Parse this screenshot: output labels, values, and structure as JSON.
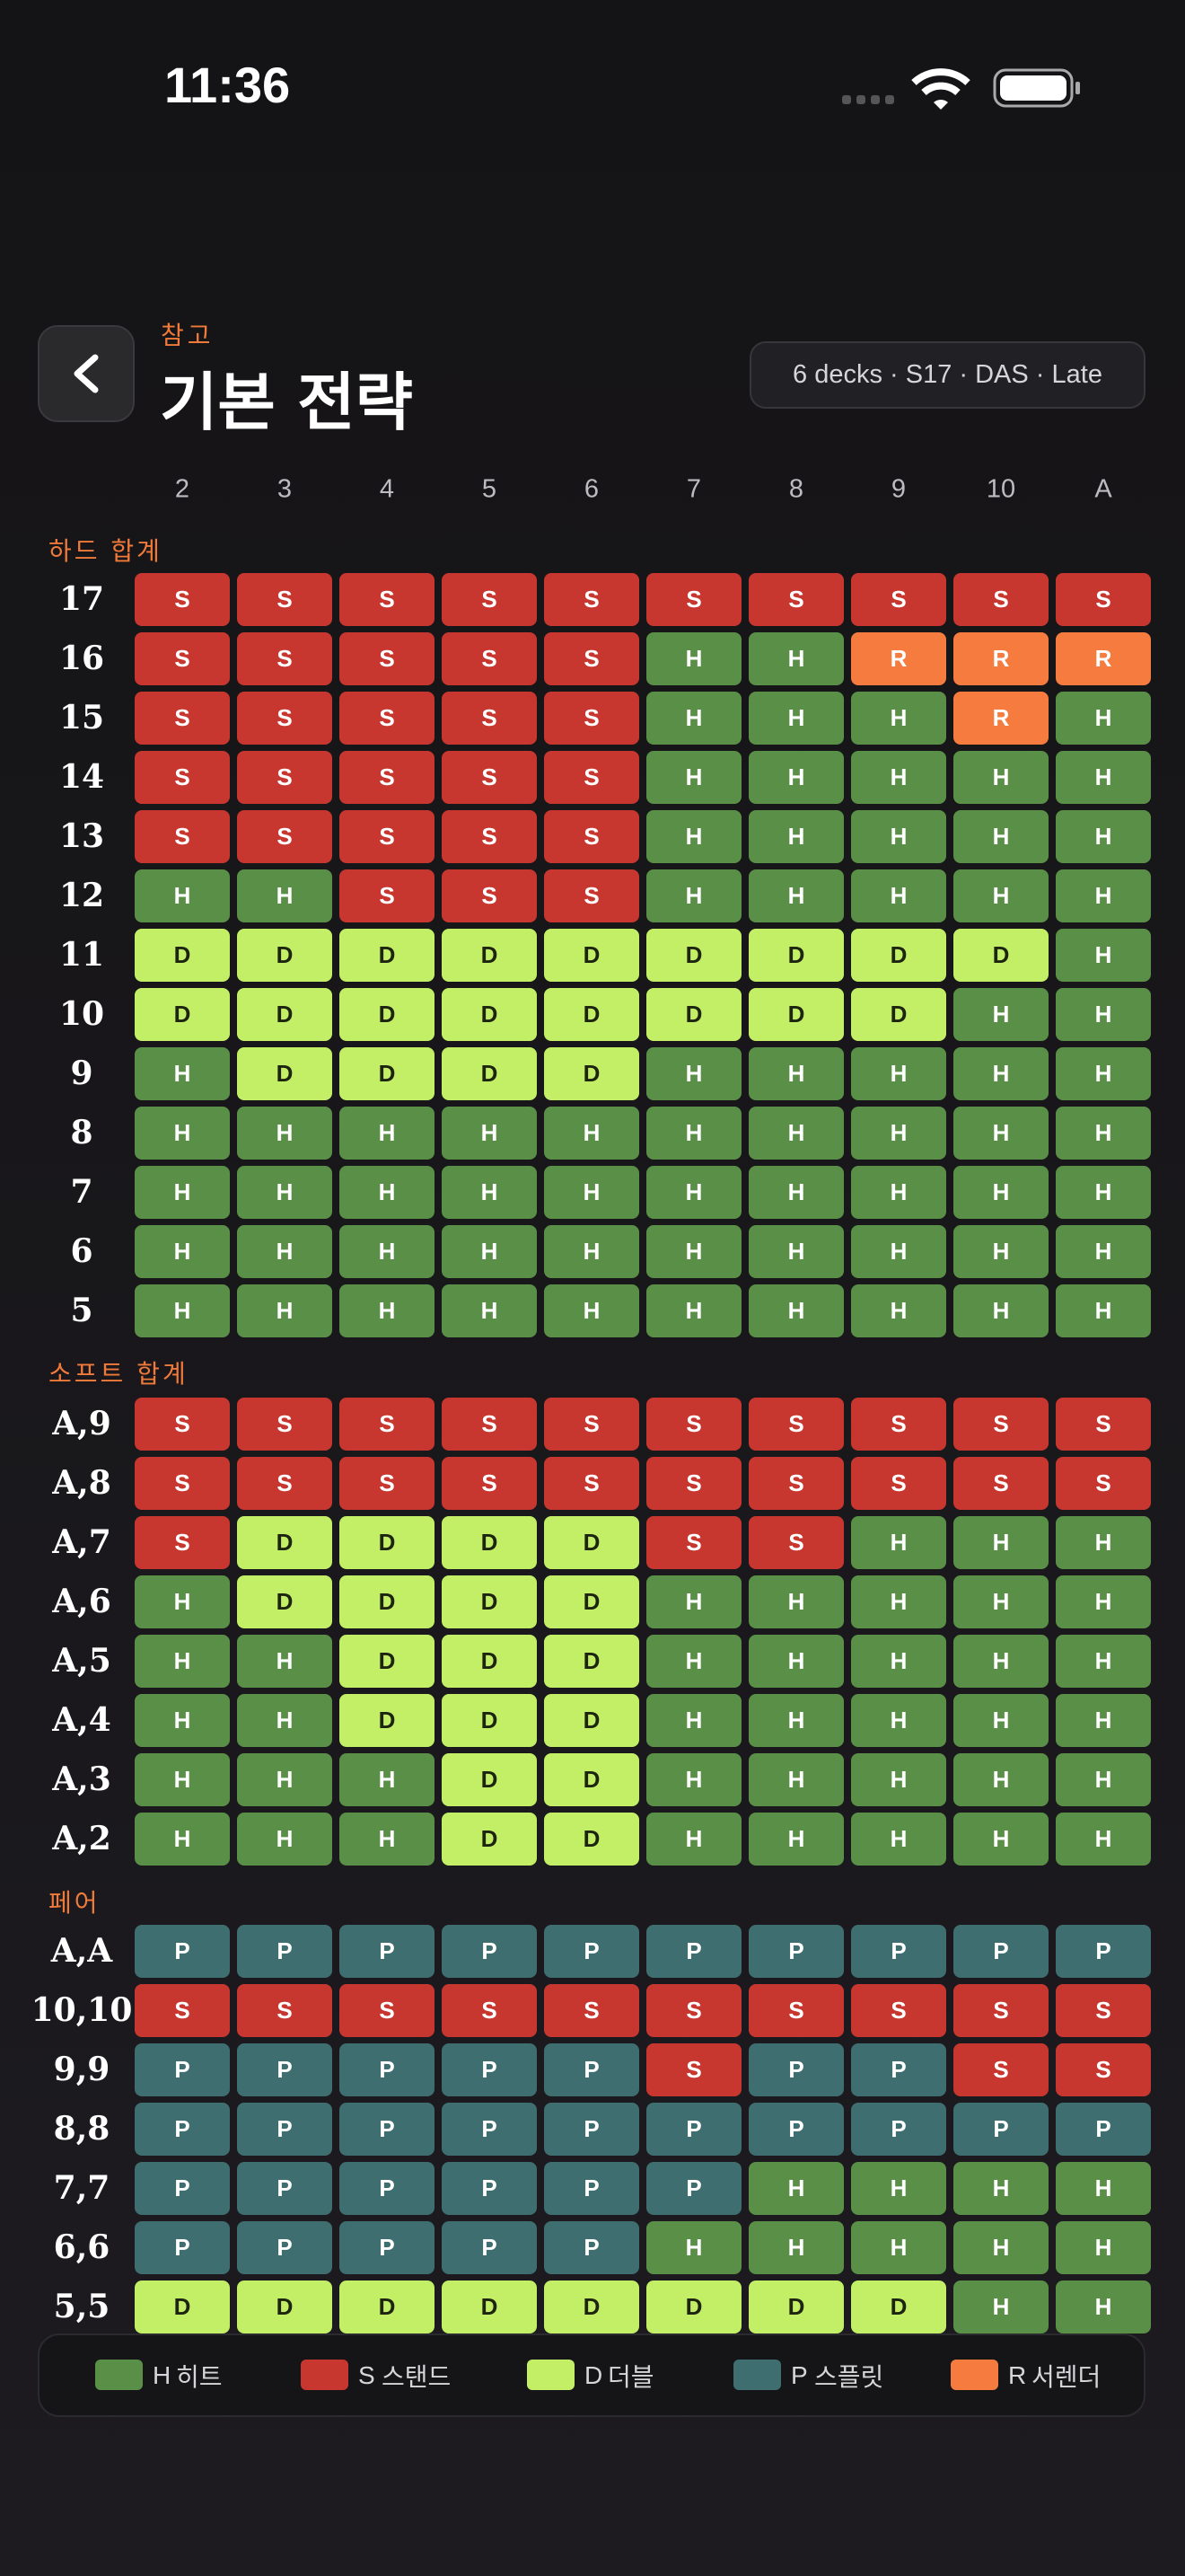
{
  "status": {
    "time": "11:36"
  },
  "header": {
    "eyebrow": "참고",
    "title": "기본 전략",
    "badge": "6 decks · S17 · DAS · Late"
  },
  "columns": [
    "2",
    "3",
    "4",
    "5",
    "6",
    "7",
    "8",
    "9",
    "10",
    "A"
  ],
  "sections": [
    {
      "title": "하드 합계",
      "rows": [
        {
          "label": "17",
          "cells": [
            "S",
            "S",
            "S",
            "S",
            "S",
            "S",
            "S",
            "S",
            "S",
            "S"
          ]
        },
        {
          "label": "16",
          "cells": [
            "S",
            "S",
            "S",
            "S",
            "S",
            "H",
            "H",
            "R",
            "R",
            "R"
          ]
        },
        {
          "label": "15",
          "cells": [
            "S",
            "S",
            "S",
            "S",
            "S",
            "H",
            "H",
            "H",
            "R",
            "H"
          ]
        },
        {
          "label": "14",
          "cells": [
            "S",
            "S",
            "S",
            "S",
            "S",
            "H",
            "H",
            "H",
            "H",
            "H"
          ]
        },
        {
          "label": "13",
          "cells": [
            "S",
            "S",
            "S",
            "S",
            "S",
            "H",
            "H",
            "H",
            "H",
            "H"
          ]
        },
        {
          "label": "12",
          "cells": [
            "H",
            "H",
            "S",
            "S",
            "S",
            "H",
            "H",
            "H",
            "H",
            "H"
          ]
        },
        {
          "label": "11",
          "cells": [
            "D",
            "D",
            "D",
            "D",
            "D",
            "D",
            "D",
            "D",
            "D",
            "H"
          ]
        },
        {
          "label": "10",
          "cells": [
            "D",
            "D",
            "D",
            "D",
            "D",
            "D",
            "D",
            "D",
            "H",
            "H"
          ]
        },
        {
          "label": "9",
          "cells": [
            "H",
            "D",
            "D",
            "D",
            "D",
            "H",
            "H",
            "H",
            "H",
            "H"
          ]
        },
        {
          "label": "8",
          "cells": [
            "H",
            "H",
            "H",
            "H",
            "H",
            "H",
            "H",
            "H",
            "H",
            "H"
          ]
        },
        {
          "label": "7",
          "cells": [
            "H",
            "H",
            "H",
            "H",
            "H",
            "H",
            "H",
            "H",
            "H",
            "H"
          ]
        },
        {
          "label": "6",
          "cells": [
            "H",
            "H",
            "H",
            "H",
            "H",
            "H",
            "H",
            "H",
            "H",
            "H"
          ]
        },
        {
          "label": "5",
          "cells": [
            "H",
            "H",
            "H",
            "H",
            "H",
            "H",
            "H",
            "H",
            "H",
            "H"
          ]
        }
      ]
    },
    {
      "title": "소프트 합계",
      "rows": [
        {
          "label": "A,9",
          "cells": [
            "S",
            "S",
            "S",
            "S",
            "S",
            "S",
            "S",
            "S",
            "S",
            "S"
          ]
        },
        {
          "label": "A,8",
          "cells": [
            "S",
            "S",
            "S",
            "S",
            "S",
            "S",
            "S",
            "S",
            "S",
            "S"
          ]
        },
        {
          "label": "A,7",
          "cells": [
            "S",
            "D",
            "D",
            "D",
            "D",
            "S",
            "S",
            "H",
            "H",
            "H"
          ]
        },
        {
          "label": "A,6",
          "cells": [
            "H",
            "D",
            "D",
            "D",
            "D",
            "H",
            "H",
            "H",
            "H",
            "H"
          ]
        },
        {
          "label": "A,5",
          "cells": [
            "H",
            "H",
            "D",
            "D",
            "D",
            "H",
            "H",
            "H",
            "H",
            "H"
          ]
        },
        {
          "label": "A,4",
          "cells": [
            "H",
            "H",
            "D",
            "D",
            "D",
            "H",
            "H",
            "H",
            "H",
            "H"
          ]
        },
        {
          "label": "A,3",
          "cells": [
            "H",
            "H",
            "H",
            "D",
            "D",
            "H",
            "H",
            "H",
            "H",
            "H"
          ]
        },
        {
          "label": "A,2",
          "cells": [
            "H",
            "H",
            "H",
            "D",
            "D",
            "H",
            "H",
            "H",
            "H",
            "H"
          ]
        }
      ]
    },
    {
      "title": "페어",
      "rows": [
        {
          "label": "A,A",
          "cells": [
            "P",
            "P",
            "P",
            "P",
            "P",
            "P",
            "P",
            "P",
            "P",
            "P"
          ]
        },
        {
          "label": "10,10",
          "cells": [
            "S",
            "S",
            "S",
            "S",
            "S",
            "S",
            "S",
            "S",
            "S",
            "S"
          ]
        },
        {
          "label": "9,9",
          "cells": [
            "P",
            "P",
            "P",
            "P",
            "P",
            "S",
            "P",
            "P",
            "S",
            "S"
          ]
        },
        {
          "label": "8,8",
          "cells": [
            "P",
            "P",
            "P",
            "P",
            "P",
            "P",
            "P",
            "P",
            "P",
            "P"
          ]
        },
        {
          "label": "7,7",
          "cells": [
            "P",
            "P",
            "P",
            "P",
            "P",
            "P",
            "H",
            "H",
            "H",
            "H"
          ]
        },
        {
          "label": "6,6",
          "cells": [
            "P",
            "P",
            "P",
            "P",
            "P",
            "H",
            "H",
            "H",
            "H",
            "H"
          ]
        },
        {
          "label": "5,5",
          "cells": [
            "D",
            "D",
            "D",
            "D",
            "D",
            "D",
            "D",
            "D",
            "H",
            "H"
          ]
        }
      ]
    }
  ],
  "legend": [
    {
      "key": "H",
      "label": "히트",
      "color": "#5a8f47"
    },
    {
      "key": "S",
      "label": "스탠드",
      "color": "#c8372f"
    },
    {
      "key": "D",
      "label": "더블",
      "color": "#c3ef67"
    },
    {
      "key": "P",
      "label": "스플릿",
      "color": "#3e6e6f"
    },
    {
      "key": "R",
      "label": "서렌더",
      "color": "#f57c3e"
    }
  ]
}
